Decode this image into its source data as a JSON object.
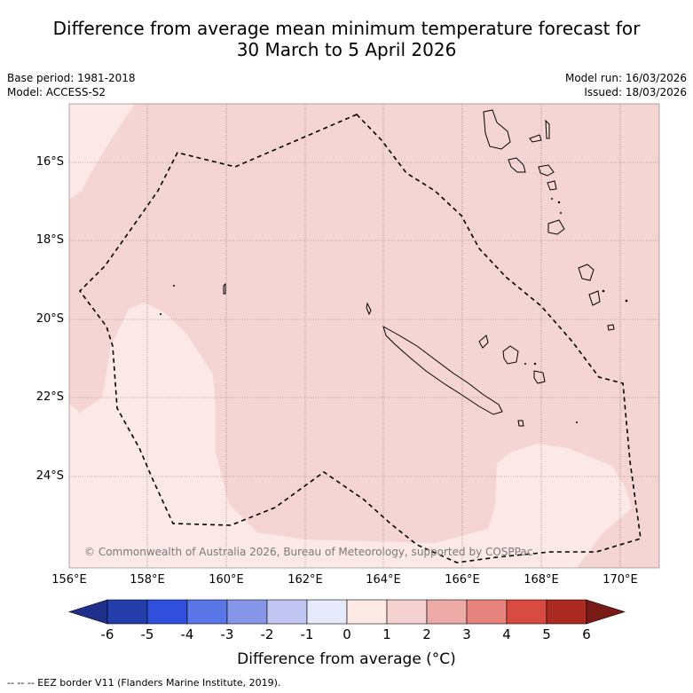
{
  "title": {
    "line1": "Difference from average mean minimum temperature forecast for",
    "line2": "30 March to 5 April 2026"
  },
  "meta": {
    "base_period": "Base period: 1981-2018",
    "model": "Model: ACCESS-S2",
    "model_run": "Model run: 16/03/2026",
    "issued": "Issued: 18/03/2026"
  },
  "map": {
    "lat_labels": [
      "16°S",
      "18°S",
      "20°S",
      "22°S",
      "24°S"
    ],
    "lon_labels": [
      "156°E",
      "158°E",
      "160°E",
      "162°E",
      "164°E",
      "166°E",
      "168°E",
      "170°E"
    ],
    "copyright": "© Commonwealth of Australia 2026, Bureau of Meteorology, supported by COSPPac",
    "fill_colors": {
      "band_0_1": "#fce8e6",
      "band_1_2": "#f5d5d3"
    }
  },
  "colorbar": {
    "ticks": [
      "-6",
      "-5",
      "-4",
      "-3",
      "-2",
      "-1",
      "0",
      "1",
      "2",
      "3",
      "4",
      "5",
      "6"
    ],
    "colors": [
      "#1f2f8c",
      "#233eaa",
      "#2f4fdc",
      "#5b76e6",
      "#8697ea",
      "#c0c7f2",
      "#e6eafb",
      "#fde9e5",
      "#f5d1cf",
      "#eeaaa6",
      "#e6837d",
      "#d94a40",
      "#ab2a22",
      "#7a1a16"
    ],
    "label": "Difference from average (°C)"
  },
  "legend": "-- -- -- EEZ border V11 (Flanders Marine Institute, 2019)."
}
